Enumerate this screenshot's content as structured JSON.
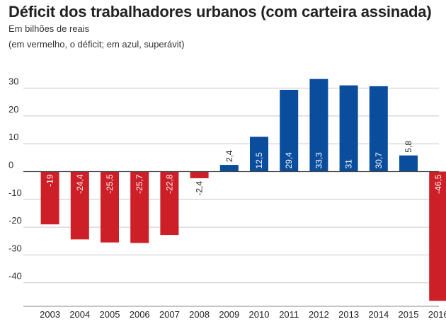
{
  "title": "Déficit dos trabalhadores urbanos (com carteira assinada)",
  "subtitle": "Em bilhões de reais",
  "subtitle2": "(em vermelho, o déficit; em azul, superávit)",
  "colors": {
    "negative": "#cc1f27",
    "positive": "#0a4d9c",
    "grid": "#c8c8c8",
    "zero_line": "#444444"
  },
  "chart_data": {
    "type": "bar",
    "title": "Déficit dos trabalhadores urbanos (com carteira assinada)",
    "subtitle": "Em bilhões de reais",
    "categories": [
      "2003",
      "2004",
      "2005",
      "2006",
      "2007",
      "2008",
      "2009",
      "2010",
      "2011",
      "2012",
      "2013",
      "2014",
      "2015",
      "2016"
    ],
    "values": [
      -19,
      -24.4,
      -25.5,
      -25.7,
      -22.8,
      -2.4,
      2.4,
      12.5,
      29.4,
      33.3,
      31,
      30.7,
      5.8,
      -46.5
    ],
    "labels": [
      "-19",
      "-24,4",
      "-25,5",
      "-25,7",
      "-22,8",
      "-2,4",
      "2,4",
      "12,5",
      "29,4",
      "33,3",
      "31",
      "30,7",
      "5,8",
      "-46,5"
    ],
    "yticks": [
      "30",
      "20",
      "10",
      "0",
      "-10",
      "-20",
      "-30",
      "-40"
    ],
    "ytick_values": [
      30,
      20,
      10,
      0,
      -10,
      -20,
      -30,
      -40
    ],
    "ylim": [
      -47.5,
      36
    ],
    "grid": true
  }
}
